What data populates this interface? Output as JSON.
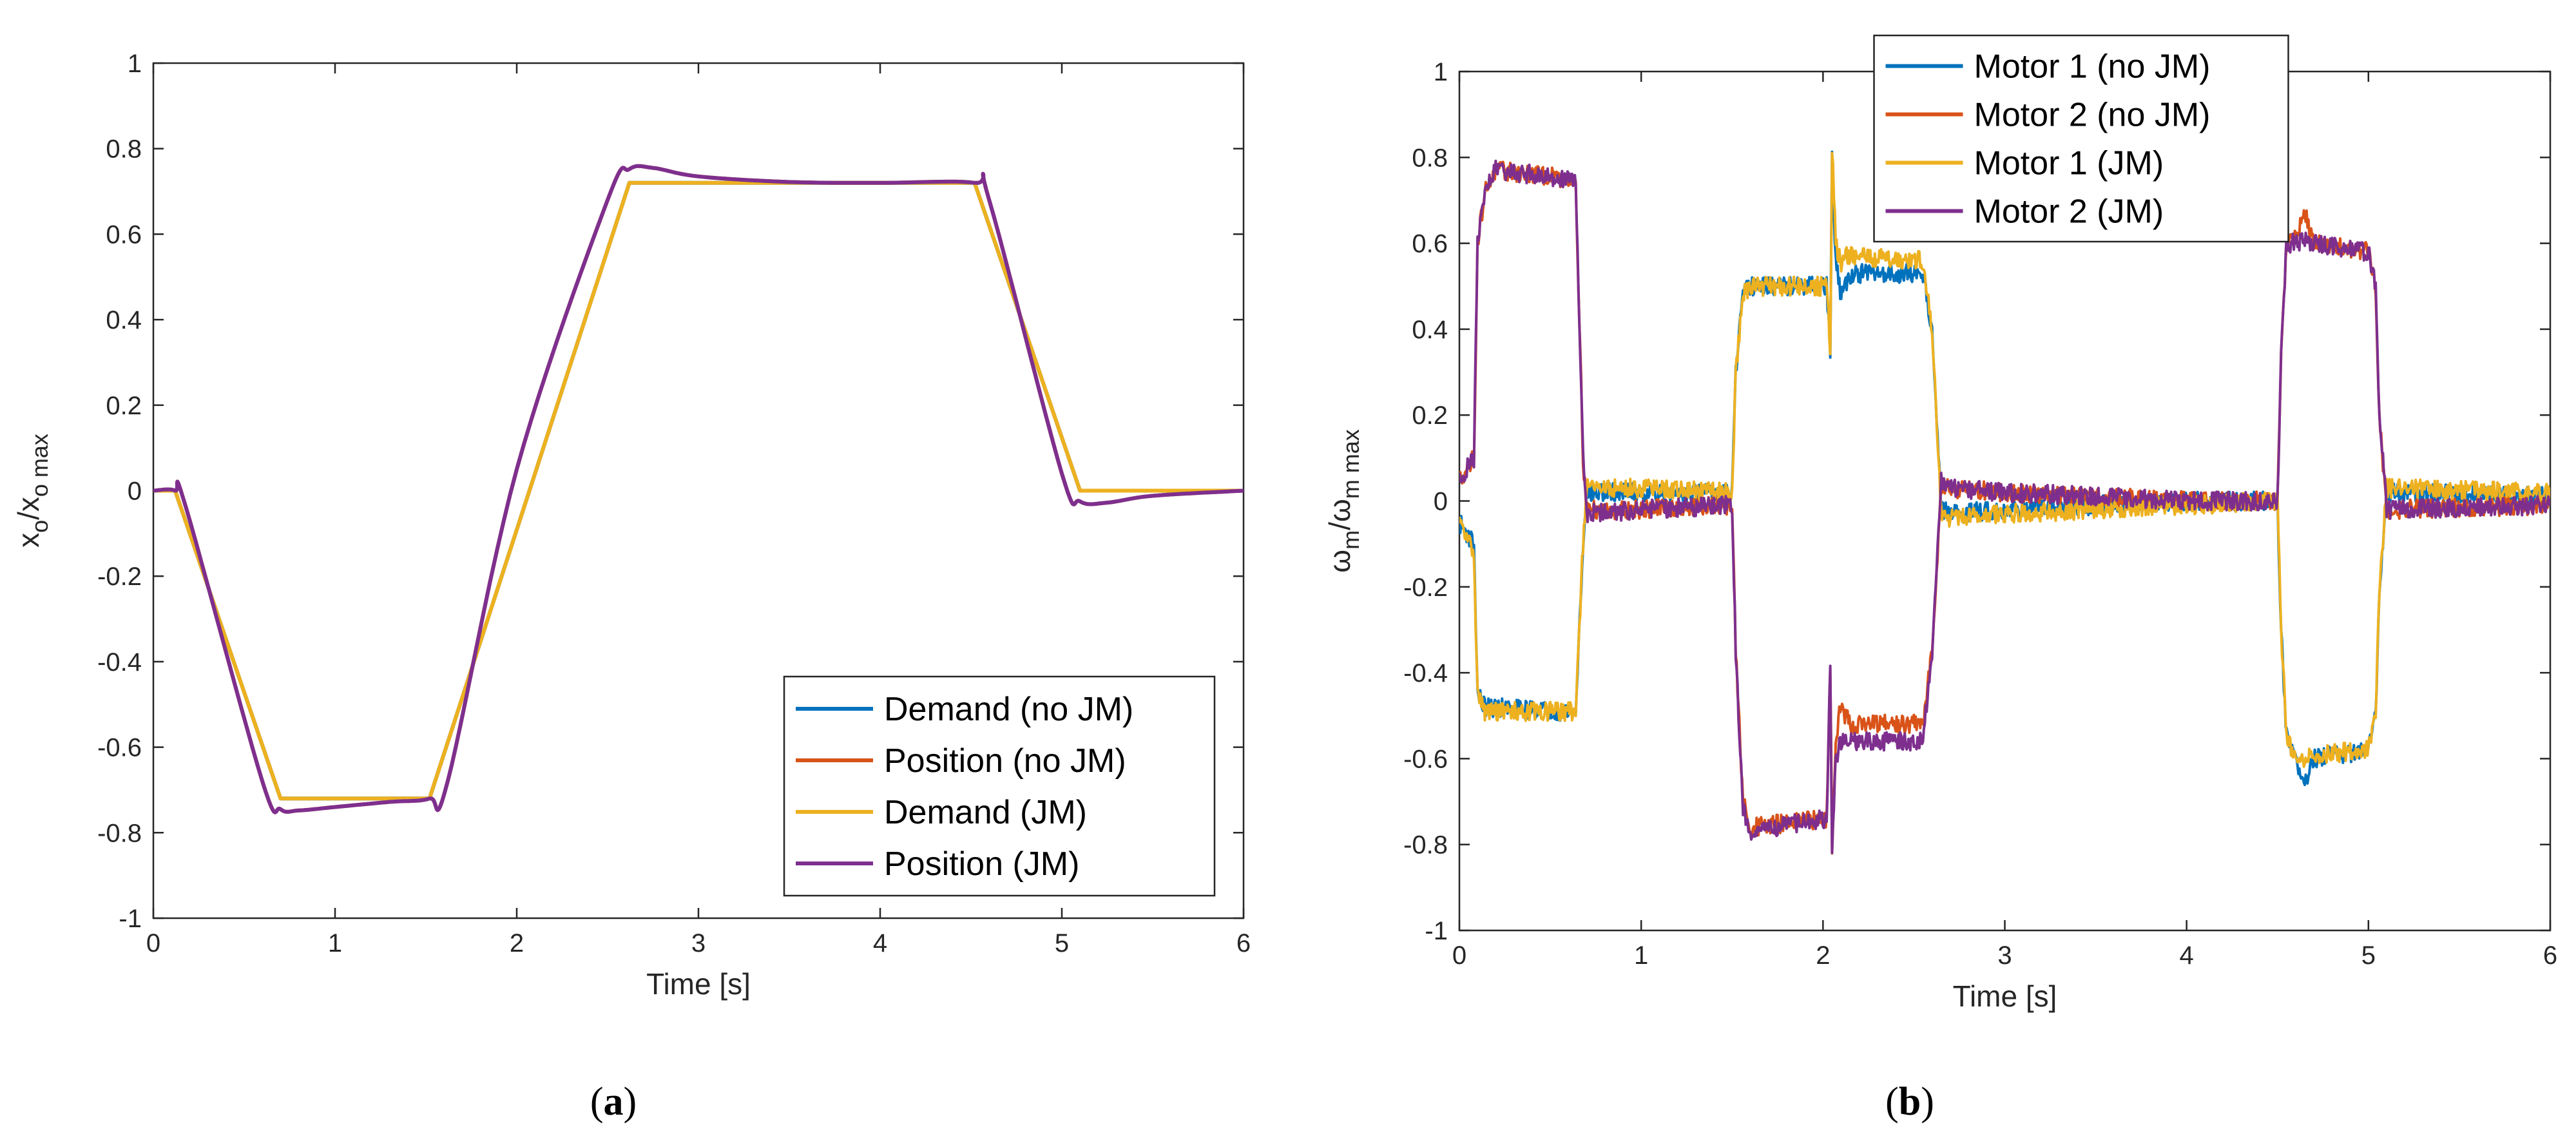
{
  "chart_data": [
    {
      "type": "line",
      "caption_open": "(",
      "caption_letter": "a",
      "caption_close": ")",
      "xlabel": "Time [s]",
      "ylabel_main": "x",
      "ylabel_sub1": "o",
      "ylabel_slash": "/x",
      "ylabel_sub2": "o max",
      "xlim": [
        0,
        6
      ],
      "ylim": [
        -1,
        1
      ],
      "xticks": [
        0,
        1,
        2,
        3,
        4,
        5,
        6
      ],
      "yticks": [
        -1,
        -0.8,
        -0.6,
        -0.4,
        -0.2,
        0,
        0.2,
        0.4,
        0.6,
        0.8,
        1
      ],
      "xtick_labels": [
        "0",
        "1",
        "2",
        "3",
        "4",
        "5",
        "6"
      ],
      "ytick_labels": [
        "-1",
        "-0.8",
        "-0.6",
        "-0.4",
        "-0.2",
        "0",
        "0.2",
        "0.4",
        "0.6",
        "0.8",
        "1"
      ],
      "legend_position": "bottom-right",
      "series": [
        {
          "name": "Demand (no JM)",
          "color": "#0072BD",
          "x": [
            0,
            0.12,
            0.7,
            1.52,
            2.62,
            4.52,
            5.1,
            6
          ],
          "y": [
            0,
            0,
            -0.72,
            -0.72,
            0.72,
            0.72,
            0,
            0
          ]
        },
        {
          "name": "Position (no JM)",
          "color": "#D95319",
          "x": [
            0,
            0.12,
            0.18,
            0.6,
            0.7,
            0.8,
            1.0,
            1.3,
            1.52,
            1.62,
            2.0,
            2.5,
            2.62,
            2.75,
            3.0,
            3.5,
            4.0,
            4.52,
            4.6,
            5.0,
            5.1,
            5.25,
            5.5,
            6
          ],
          "y": [
            0,
            0,
            -0.04,
            -0.68,
            -0.745,
            -0.748,
            -0.74,
            -0.728,
            -0.72,
            -0.68,
            0.05,
            0.68,
            0.752,
            0.755,
            0.735,
            0.722,
            0.72,
            0.72,
            0.68,
            0.04,
            -0.025,
            -0.028,
            -0.012,
            0
          ]
        },
        {
          "name": "Demand (JM)",
          "color": "#EDB120",
          "x": [
            0,
            0.12,
            0.7,
            1.52,
            2.62,
            4.52,
            5.1,
            6
          ],
          "y": [
            0,
            0,
            -0.72,
            -0.72,
            0.72,
            0.72,
            0,
            0
          ]
        },
        {
          "name": "Position (JM)",
          "color": "#7E2F8E",
          "x": [
            0,
            0.12,
            0.18,
            0.6,
            0.7,
            0.8,
            1.0,
            1.3,
            1.52,
            1.62,
            2.0,
            2.5,
            2.62,
            2.75,
            3.0,
            3.5,
            4.0,
            4.52,
            4.6,
            5.0,
            5.1,
            5.25,
            5.5,
            6
          ],
          "y": [
            0,
            0,
            -0.04,
            -0.68,
            -0.745,
            -0.748,
            -0.74,
            -0.728,
            -0.72,
            -0.68,
            0.05,
            0.68,
            0.752,
            0.755,
            0.735,
            0.722,
            0.72,
            0.72,
            0.68,
            0.04,
            -0.025,
            -0.028,
            -0.012,
            0
          ]
        }
      ]
    },
    {
      "type": "line",
      "caption_open": "(",
      "caption_letter": "b",
      "caption_close": ")",
      "xlabel": "Time [s]",
      "ylabel_main": "ω",
      "ylabel_sub1": "m",
      "ylabel_slash": "/ω",
      "ylabel_sub2": "m max",
      "xlim": [
        0,
        6
      ],
      "ylim": [
        -1,
        1
      ],
      "xticks": [
        0,
        1,
        2,
        3,
        4,
        5,
        6
      ],
      "yticks": [
        -1,
        -0.8,
        -0.6,
        -0.4,
        -0.2,
        0,
        0.2,
        0.4,
        0.6,
        0.8,
        1
      ],
      "xtick_labels": [
        "0",
        "1",
        "2",
        "3",
        "4",
        "5",
        "6"
      ],
      "ytick_labels": [
        "-1",
        "-0.8",
        "-0.6",
        "-0.4",
        "-0.2",
        "0",
        "0.2",
        "0.4",
        "0.6",
        "0.8",
        "1"
      ],
      "legend_position": "top-center",
      "series": [
        {
          "name": "Motor 1 (no JM)",
          "color": "#0072BD",
          "noise": 0.022,
          "x": [
            0,
            0.08,
            0.1,
            0.14,
            0.6,
            0.64,
            0.68,
            0.7,
            1.0,
            1.5,
            1.52,
            1.56,
            1.6,
            2.02,
            2.04,
            2.05,
            2.07,
            2.1,
            2.12,
            2.16,
            2.55,
            2.6,
            2.65,
            2.7,
            3.0,
            4.0,
            4.5,
            4.52,
            4.55,
            4.6,
            4.65,
            4.7,
            5.0,
            5.04,
            5.06,
            5.1,
            6
          ],
          "y": [
            -0.05,
            -0.1,
            -0.45,
            -0.48,
            -0.49,
            -0.49,
            -0.1,
            0.02,
            0.02,
            0.02,
            0.3,
            0.48,
            0.5,
            0.5,
            0.35,
            0.8,
            0.55,
            0.48,
            0.5,
            0.53,
            0.53,
            0.4,
            -0.02,
            -0.03,
            -0.02,
            0.0,
            0.0,
            -0.3,
            -0.55,
            -0.6,
            -0.66,
            -0.6,
            -0.58,
            -0.5,
            -0.2,
            0.02,
            0.01
          ]
        },
        {
          "name": "Motor 2 (no JM)",
          "color": "#D95319",
          "noise": 0.022,
          "x": [
            0,
            0.08,
            0.1,
            0.14,
            0.2,
            0.6,
            0.64,
            0.68,
            0.7,
            1.0,
            1.5,
            1.52,
            1.56,
            1.6,
            2.02,
            2.04,
            2.05,
            2.07,
            2.1,
            2.12,
            2.16,
            2.55,
            2.6,
            2.65,
            2.7,
            3.0,
            4.0,
            4.5,
            4.52,
            4.55,
            4.6,
            4.65,
            4.7,
            5.0,
            5.04,
            5.06,
            5.1,
            6
          ],
          "y": [
            0.05,
            0.1,
            0.6,
            0.72,
            0.77,
            0.75,
            0.75,
            0.1,
            -0.02,
            -0.02,
            -0.01,
            -0.35,
            -0.7,
            -0.76,
            -0.74,
            -0.38,
            -0.8,
            -0.55,
            -0.47,
            -0.5,
            -0.52,
            -0.52,
            -0.35,
            0.04,
            0.03,
            0.02,
            0.0,
            0.0,
            0.35,
            0.6,
            0.62,
            0.67,
            0.6,
            0.58,
            0.5,
            0.2,
            -0.02,
            -0.01
          ]
        },
        {
          "name": "Motor 1 (JM)",
          "color": "#EDB120",
          "noise": 0.022,
          "x": [
            0,
            0.08,
            0.1,
            0.14,
            0.6,
            0.64,
            0.68,
            0.7,
            1.0,
            1.5,
            1.52,
            1.56,
            1.6,
            2.02,
            2.04,
            2.05,
            2.07,
            2.1,
            2.12,
            2.16,
            2.55,
            2.6,
            2.65,
            2.7,
            3.0,
            4.0,
            4.5,
            4.52,
            4.55,
            4.6,
            4.65,
            4.7,
            5.0,
            5.04,
            5.06,
            5.1,
            6
          ],
          "y": [
            -0.05,
            -0.12,
            -0.45,
            -0.49,
            -0.49,
            -0.49,
            -0.1,
            0.03,
            0.03,
            0.02,
            0.3,
            0.48,
            0.5,
            0.5,
            0.35,
            0.82,
            0.6,
            0.55,
            0.57,
            0.57,
            0.56,
            0.4,
            -0.03,
            -0.04,
            -0.03,
            -0.01,
            0.0,
            -0.3,
            -0.55,
            -0.6,
            -0.6,
            -0.59,
            -0.58,
            -0.5,
            -0.2,
            0.03,
            0.02
          ]
        },
        {
          "name": "Motor 2 (JM)",
          "color": "#7E2F8E",
          "noise": 0.022,
          "x": [
            0,
            0.08,
            0.1,
            0.14,
            0.2,
            0.6,
            0.64,
            0.68,
            0.7,
            1.0,
            1.5,
            1.52,
            1.56,
            1.6,
            2.02,
            2.04,
            2.05,
            2.07,
            2.1,
            2.12,
            2.16,
            2.55,
            2.6,
            2.65,
            2.7,
            3.0,
            4.0,
            4.5,
            4.52,
            4.55,
            4.6,
            4.65,
            4.7,
            5.0,
            5.04,
            5.06,
            5.1,
            6
          ],
          "y": [
            0.05,
            0.1,
            0.6,
            0.72,
            0.77,
            0.75,
            0.75,
            0.1,
            -0.03,
            -0.02,
            -0.01,
            -0.35,
            -0.72,
            -0.77,
            -0.74,
            -0.38,
            -0.82,
            -0.6,
            -0.56,
            -0.56,
            -0.56,
            -0.56,
            -0.35,
            0.05,
            0.03,
            0.02,
            0.0,
            0.0,
            0.35,
            0.6,
            0.6,
            0.61,
            0.6,
            0.58,
            0.5,
            0.2,
            -0.02,
            -0.01
          ]
        }
      ]
    }
  ]
}
